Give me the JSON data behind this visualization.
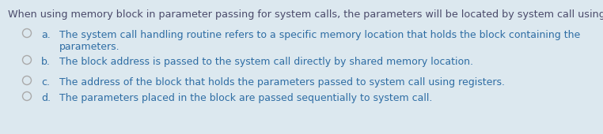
{
  "background_color": "#dce8ef",
  "question_color": "#4a4a6a",
  "option_color": "#2e6da4",
  "circle_color": "#aaaaaa",
  "question": "When using memory block in parameter passing for system calls, the parameters will be located by system call using:",
  "options": [
    {
      "label": "a.",
      "line1": "The system call handling routine refers to a specific memory location that holds the block containing the",
      "line2": "parameters."
    },
    {
      "label": "b.",
      "line1": "The block address is passed to the system call directly by shared memory location.",
      "line2": null
    },
    {
      "label": "c.",
      "line1": "The address of the block that holds the parameters passed to system call using registers.",
      "line2": null
    },
    {
      "label": "d.",
      "line1": "The parameters placed in the block are passed sequentially to system call.",
      "line2": null
    }
  ],
  "font_size_question": 9.2,
  "font_size_options": 9.0,
  "figsize": [
    7.62,
    1.7
  ],
  "dpi": 100
}
